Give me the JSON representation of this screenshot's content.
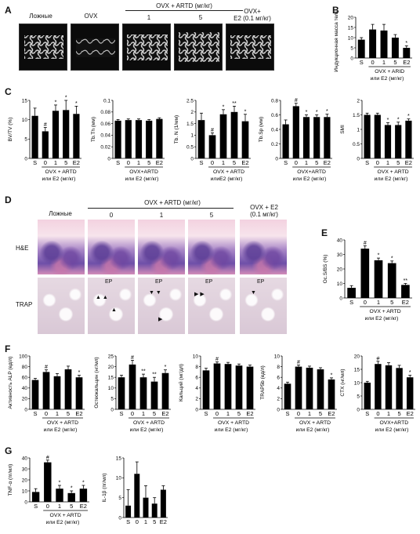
{
  "panels": {
    "A": "A",
    "B": "B",
    "C": "C",
    "D": "D",
    "E": "E",
    "F": "F",
    "G": "G"
  },
  "panelA": {
    "labels": [
      "Ложные",
      "OVX",
      "1",
      "5"
    ],
    "group_header": "OVX + ARTD (мг/кг)",
    "e2_line1": "OVX+",
    "e2_line2": "E2 (0.1 мг/кг)"
  },
  "panelD": {
    "labels": [
      "Ложные",
      "0",
      "1",
      "5"
    ],
    "group_header": "OVX + ARTD (мг/кг)",
    "e2_line1": "OVX + E2",
    "e2_line2": "(0.1 мг/кг)",
    "row_he": "H&E",
    "row_trap": "TRAP",
    "ep": "EP"
  },
  "chart_data": [
    {
      "id": "B",
      "type": "bar",
      "categories": [
        "S",
        "0",
        "1",
        "5",
        "E2"
      ],
      "values": [
        9,
        14,
        13.5,
        10,
        5
      ],
      "errors": [
        1,
        2.5,
        3,
        1.5,
        1
      ],
      "sig": [
        "",
        "",
        "",
        "",
        "*"
      ],
      "ylabel": "Индукционная масса тела (г)",
      "ylim": [
        0,
        20
      ],
      "yticks": [
        0,
        5,
        10,
        15,
        20
      ],
      "group_label": "OVX + ARID",
      "xlabel": "или E2 (мг/кг)"
    },
    {
      "id": "C1",
      "type": "bar",
      "categories": [
        "S",
        "0",
        "1",
        "5",
        "E2"
      ],
      "values": [
        11,
        7,
        12.3,
        12.5,
        11.5
      ],
      "errors": [
        2,
        1,
        1.5,
        2.5,
        2
      ],
      "sig": [
        "",
        "#",
        "*",
        "*",
        "*"
      ],
      "ylabel": "BV/TV (%)",
      "ylim": [
        0,
        15
      ],
      "yticks": [
        0,
        5,
        10,
        15
      ],
      "group_label": "OVX + ARTD",
      "xlabel": "или E2 (мг/кг)"
    },
    {
      "id": "C2",
      "type": "bar",
      "categories": [
        "S",
        "0",
        "1",
        "5",
        "E2"
      ],
      "values": [
        0.065,
        0.066,
        0.066,
        0.065,
        0.068
      ],
      "errors": [
        0.002,
        0.002,
        0.002,
        0.002,
        0.002
      ],
      "sig": [
        "",
        "",
        "",
        "",
        ""
      ],
      "ylabel": "Tb.Th (мм)",
      "ylim": [
        0,
        0.1
      ],
      "yticks": [
        0,
        0.02,
        0.04,
        0.06,
        0.08,
        0.1
      ],
      "group_label": "OVX+ARTD",
      "xlabel": "или E2 (мг/кг)"
    },
    {
      "id": "C3",
      "type": "bar",
      "categories": [
        "S",
        "0",
        "1",
        "5",
        "E2"
      ],
      "values": [
        1.65,
        1.0,
        1.9,
        2.0,
        1.6
      ],
      "errors": [
        0.3,
        0.1,
        0.2,
        0.25,
        0.3
      ],
      "sig": [
        "",
        "#",
        "*",
        "**",
        "*"
      ],
      "ylabel": "Tb. N (1/мм)",
      "ylim": [
        0,
        2.5
      ],
      "yticks": [
        0,
        0.5,
        1.0,
        1.5,
        2.0,
        2.5
      ],
      "group_label": "OVX + ARTD",
      "xlabel": "илиE2 (мг/кг)"
    },
    {
      "id": "C4",
      "type": "bar",
      "categories": [
        "S",
        "0",
        "1",
        "5",
        "E2"
      ],
      "values": [
        0.47,
        0.72,
        0.57,
        0.57,
        0.57
      ],
      "errors": [
        0.06,
        0.04,
        0.03,
        0.03,
        0.04
      ],
      "sig": [
        "",
        "#",
        "*",
        "*",
        "*"
      ],
      "ylabel": "Tb.Sp (мм)",
      "ylim": [
        0,
        0.8
      ],
      "yticks": [
        0,
        0.2,
        0.4,
        0.6,
        0.8
      ],
      "group_label": "OVX+ARTD",
      "xlabel": "или E2 (мг/кг)"
    },
    {
      "id": "C5",
      "type": "bar",
      "categories": [
        "S",
        "0",
        "1",
        "5",
        "E2"
      ],
      "values": [
        1.5,
        1.5,
        1.15,
        1.15,
        1.3
      ],
      "errors": [
        0.06,
        0.06,
        0.08,
        0.1,
        0.06
      ],
      "sig": [
        "",
        "",
        "*",
        "*",
        "*"
      ],
      "ylabel": "SMI",
      "ylim": [
        0,
        2.0
      ],
      "yticks": [
        0,
        0.5,
        1.0,
        1.5,
        2.0
      ],
      "group_label": "OVX + ARTD",
      "xlabel": "или E2 (мг/кг)"
    },
    {
      "id": "E",
      "type": "bar",
      "categories": [
        "S",
        "0",
        "1",
        "5",
        "E2"
      ],
      "values": [
        7,
        34,
        26,
        24,
        9
      ],
      "errors": [
        1.5,
        2,
        1.5,
        1.5,
        1
      ],
      "sig": [
        "",
        "#",
        "*",
        "*",
        "**"
      ],
      "ylabel": "Oc.S/BS (%)",
      "ylim": [
        0,
        40
      ],
      "yticks": [
        0,
        10,
        20,
        30,
        40
      ],
      "group_label": "OVX + ARTD",
      "xlabel": "или E2 (мг/кг)"
    },
    {
      "id": "F1",
      "type": "bar",
      "categories": [
        "S",
        "0",
        "1",
        "5",
        "E2"
      ],
      "values": [
        55,
        70,
        62,
        75,
        60
      ],
      "errors": [
        3,
        4,
        5,
        6,
        4
      ],
      "sig": [
        "",
        "#",
        "",
        "",
        "*"
      ],
      "ylabel": "Активность ALP (ед/л)",
      "ylim": [
        0,
        100
      ],
      "yticks": [
        0,
        20,
        40,
        60,
        80,
        100
      ],
      "group_label": "OVX + ARTD",
      "xlabel": "или E2 (мг/кг)"
    },
    {
      "id": "F2",
      "type": "bar",
      "categories": [
        "S",
        "0",
        "1",
        "5",
        "E2"
      ],
      "values": [
        15,
        21,
        15,
        13,
        17
      ],
      "errors": [
        1,
        2,
        1.5,
        2,
        1.5
      ],
      "sig": [
        "",
        "#",
        "**",
        "**",
        "*"
      ],
      "ylabel": "Остеокальцин (нг/мл)",
      "ylim": [
        0,
        25
      ],
      "yticks": [
        0,
        5,
        10,
        15,
        20,
        25
      ],
      "group_label": "OVX + ARTD",
      "xlabel": "или E2 (мг/кг)"
    },
    {
      "id": "F3",
      "type": "bar",
      "categories": [
        "S",
        "0",
        "1",
        "5",
        "E2"
      ],
      "values": [
        7.3,
        8.6,
        8.5,
        8.2,
        8.0
      ],
      "errors": [
        0.4,
        0.3,
        0.3,
        0.3,
        0.3
      ],
      "sig": [
        "",
        "#",
        "",
        "",
        ""
      ],
      "ylabel": "Кальций (мг/дл)",
      "ylim": [
        0,
        10
      ],
      "yticks": [
        0,
        2,
        4,
        6,
        8,
        10
      ],
      "group_label": "OVX + ARTD",
      "xlabel": "или E2 (мг/кг)"
    },
    {
      "id": "F4",
      "type": "bar",
      "categories": [
        "S",
        "0",
        "1",
        "5",
        "E2"
      ],
      "values": [
        4.8,
        8.0,
        7.8,
        7.5,
        5.6
      ],
      "errors": [
        0.3,
        0.3,
        0.3,
        0.3,
        0.3
      ],
      "sig": [
        "",
        "#",
        "",
        "",
        "*"
      ],
      "ylabel": "TRAP5b (ед/л)",
      "ylim": [
        0,
        10
      ],
      "yticks": [
        0,
        2,
        4,
        6,
        8,
        10
      ],
      "group_label": "OVX + ARTD",
      "xlabel": "или E2 (мг/кг)"
    },
    {
      "id": "F5",
      "type": "bar",
      "categories": [
        "S",
        "0",
        "1",
        "5",
        "E2"
      ],
      "values": [
        10,
        17,
        16.5,
        15.5,
        12
      ],
      "errors": [
        0.5,
        1,
        1,
        1,
        0.8
      ],
      "sig": [
        "",
        "#",
        "",
        "",
        "*"
      ],
      "ylabel": "CTX (нг/мл)",
      "ylim": [
        0,
        20
      ],
      "yticks": [
        0,
        5,
        10,
        15,
        20
      ],
      "group_label": "OVX+ARTD",
      "xlabel": "или E2 (мг/кг)"
    },
    {
      "id": "G1",
      "type": "bar",
      "categories": [
        "S",
        "0",
        "1",
        "5",
        "E2"
      ],
      "values": [
        9,
        36,
        12,
        8,
        12
      ],
      "errors": [
        3,
        2,
        3,
        2,
        3
      ],
      "sig": [
        "",
        "#",
        "*",
        "*",
        "*"
      ],
      "ylabel": "TNF-α (пг/мл)",
      "ylim": [
        0,
        40
      ],
      "yticks": [
        0,
        10,
        20,
        30,
        40
      ],
      "group_label": "OVX + ARTD",
      "xlabel": "или E2 (мг/кг)"
    },
    {
      "id": "G2",
      "type": "bar",
      "categories": [
        "S",
        "0",
        "1",
        "5",
        "E2"
      ],
      "values": [
        3,
        11,
        5,
        3.5,
        7
      ],
      "errors": [
        4,
        3,
        3,
        1.5,
        1
      ],
      "sig": [
        "",
        "",
        "",
        "",
        ""
      ],
      "ylabel": "IL-1β (пг/мл)",
      "ylim": [
        0,
        15
      ],
      "yticks": [
        0,
        5,
        10,
        15
      ],
      "group_label": "",
      "xlabel": ""
    }
  ]
}
